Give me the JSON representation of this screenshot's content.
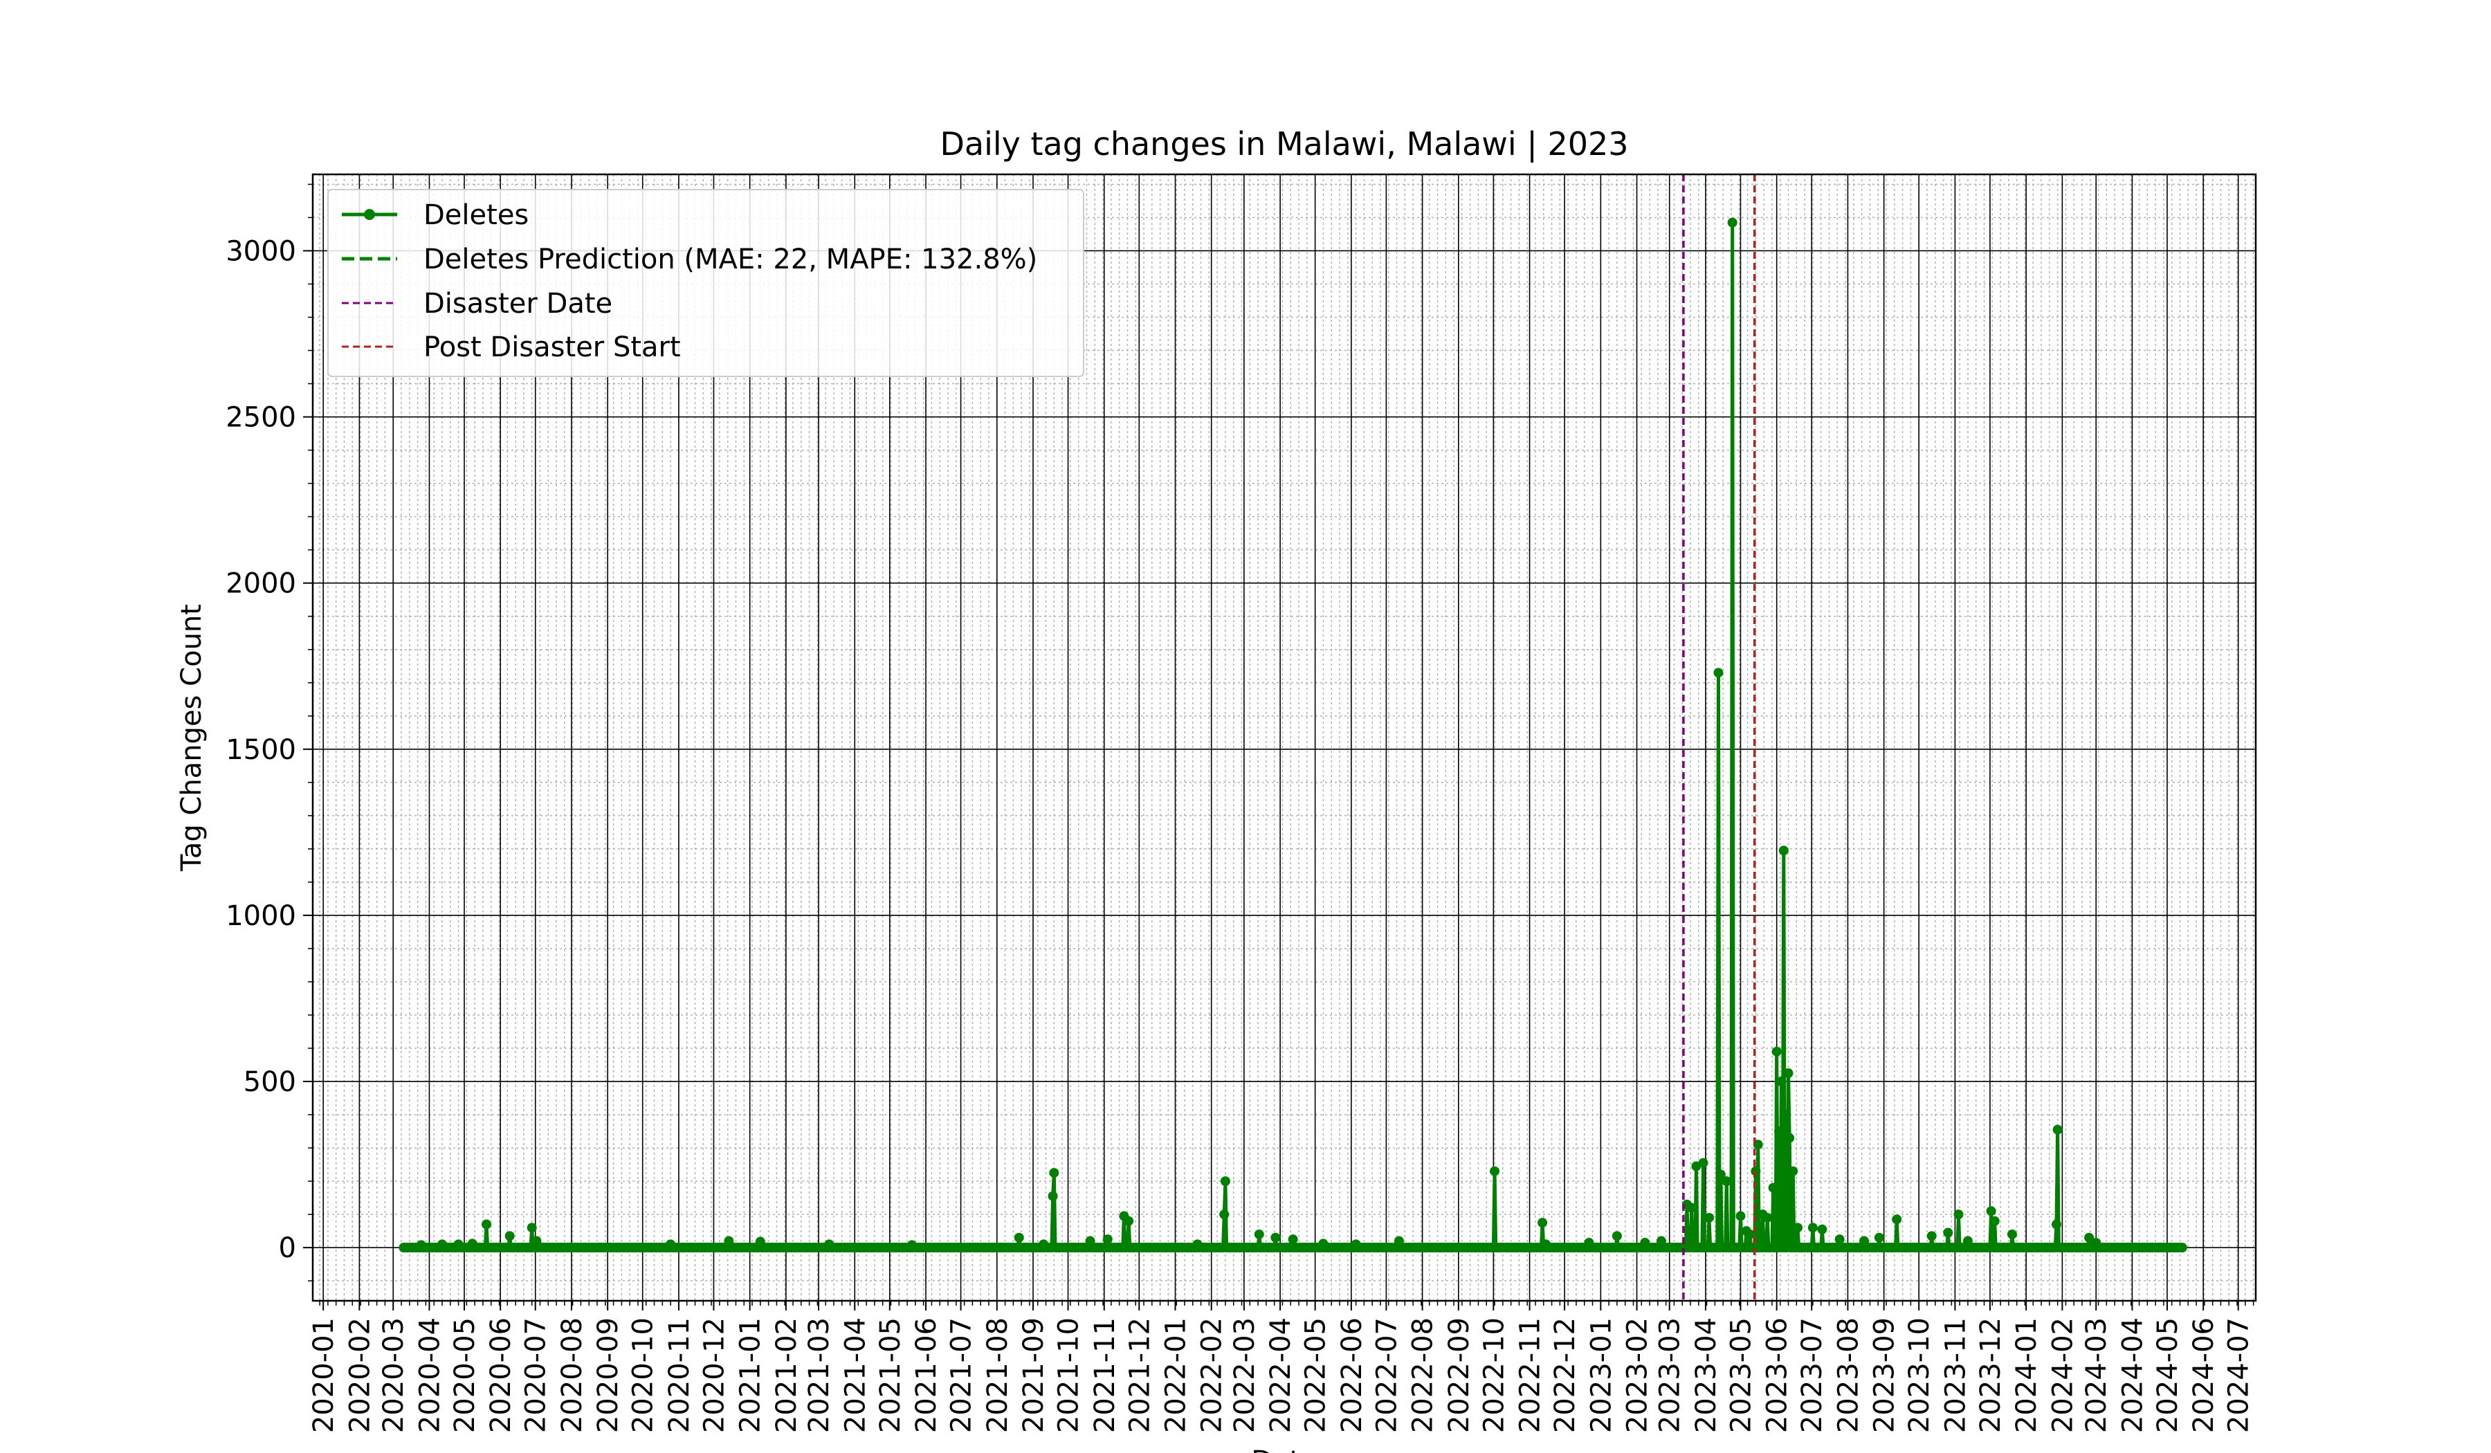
{
  "chart_data": {
    "type": "line",
    "title": "Daily tag changes in Malawi, Malawi | 2023",
    "xlabel": "Date",
    "ylabel": "Tag Changes Count",
    "xlim": [
      "2019-12-23",
      "2024-07-16"
    ],
    "ylim": [
      -160,
      3230
    ],
    "grid": true,
    "legend_position": "top-left",
    "x_ticks": [
      "2020-01",
      "2020-02",
      "2020-03",
      "2020-04",
      "2020-05",
      "2020-06",
      "2020-07",
      "2020-08",
      "2020-09",
      "2020-10",
      "2020-11",
      "2020-12",
      "2021-01",
      "2021-02",
      "2021-03",
      "2021-04",
      "2021-05",
      "2021-06",
      "2021-07",
      "2021-08",
      "2021-09",
      "2021-10",
      "2021-11",
      "2021-12",
      "2022-01",
      "2022-02",
      "2022-03",
      "2022-04",
      "2022-05",
      "2022-06",
      "2022-07",
      "2022-08",
      "2022-09",
      "2022-10",
      "2022-11",
      "2022-12",
      "2023-01",
      "2023-02",
      "2023-03",
      "2023-04",
      "2023-05",
      "2023-06",
      "2023-07",
      "2023-08",
      "2023-09",
      "2023-10",
      "2023-11",
      "2023-12",
      "2024-01",
      "2024-02",
      "2024-03",
      "2024-04",
      "2024-05",
      "2024-06",
      "2024-07"
    ],
    "y_ticks": [
      0,
      500,
      1000,
      1500,
      2000,
      2500,
      3000
    ],
    "legend": [
      {
        "label": "Deletes",
        "style": "line-marker",
        "color": "#008000"
      },
      {
        "label": "Deletes Prediction (MAE: 22, MAPE: 132.8%)",
        "style": "dashed",
        "color": "#008000"
      },
      {
        "label": "Disaster Date",
        "style": "dashed",
        "color": "#800080"
      },
      {
        "label": "Post Disaster Start",
        "style": "dashed",
        "color": "#b22222"
      }
    ],
    "vlines": [
      {
        "name": "Disaster Date",
        "x": "2023-03-13",
        "color": "#800080"
      },
      {
        "name": "Post Disaster Start",
        "x": "2023-05-13",
        "color": "#b22222"
      }
    ],
    "series": [
      {
        "name": "Deletes",
        "color": "#008000",
        "start": "2020-03-10",
        "end": "2024-05-14",
        "baseline": 0,
        "spikes": [
          [
            "2020-03-25",
            8
          ],
          [
            "2020-04-12",
            10
          ],
          [
            "2020-04-26",
            10
          ],
          [
            "2020-05-08",
            12
          ],
          [
            "2020-05-20",
            70
          ],
          [
            "2020-06-09",
            35
          ],
          [
            "2020-06-28",
            60
          ],
          [
            "2020-07-02",
            20
          ],
          [
            "2020-10-25",
            10
          ],
          [
            "2020-12-14",
            20
          ],
          [
            "2021-01-10",
            18
          ],
          [
            "2021-03-10",
            10
          ],
          [
            "2021-05-20",
            8
          ],
          [
            "2021-08-20",
            30
          ],
          [
            "2021-09-10",
            10
          ],
          [
            "2021-09-18",
            155
          ],
          [
            "2021-09-19",
            225
          ],
          [
            "2021-10-20",
            20
          ],
          [
            "2021-11-04",
            25
          ],
          [
            "2021-11-18",
            95
          ],
          [
            "2021-11-22",
            80
          ],
          [
            "2022-01-20",
            10
          ],
          [
            "2022-02-12",
            100
          ],
          [
            "2022-02-13",
            200
          ],
          [
            "2022-03-14",
            40
          ],
          [
            "2022-03-28",
            30
          ],
          [
            "2022-04-12",
            25
          ],
          [
            "2022-05-08",
            12
          ],
          [
            "2022-06-05",
            10
          ],
          [
            "2022-07-12",
            20
          ],
          [
            "2022-10-02",
            230
          ],
          [
            "2022-11-12",
            75
          ],
          [
            "2022-11-15",
            10
          ],
          [
            "2022-12-22",
            15
          ],
          [
            "2023-01-15",
            35
          ],
          [
            "2023-02-08",
            15
          ],
          [
            "2023-02-22",
            20
          ],
          [
            "2023-03-16",
            130
          ],
          [
            "2023-03-20",
            120
          ],
          [
            "2023-03-24",
            245
          ],
          [
            "2023-03-30",
            255
          ],
          [
            "2023-04-04",
            90
          ],
          [
            "2023-04-12",
            1730
          ],
          [
            "2023-04-14",
            220
          ],
          [
            "2023-04-19",
            200
          ],
          [
            "2023-04-24",
            3085
          ],
          [
            "2023-05-01",
            95
          ],
          [
            "2023-05-06",
            50
          ],
          [
            "2023-05-09",
            40
          ],
          [
            "2023-05-14",
            230
          ],
          [
            "2023-05-16",
            310
          ],
          [
            "2023-05-20",
            100
          ],
          [
            "2023-05-24",
            90
          ],
          [
            "2023-05-29",
            180
          ],
          [
            "2023-06-01",
            590
          ],
          [
            "2023-06-03",
            350
          ],
          [
            "2023-06-05",
            500
          ],
          [
            "2023-06-07",
            1195
          ],
          [
            "2023-06-09",
            400
          ],
          [
            "2023-06-11",
            525
          ],
          [
            "2023-06-12",
            330
          ],
          [
            "2023-06-15",
            230
          ],
          [
            "2023-06-19",
            60
          ],
          [
            "2023-07-02",
            60
          ],
          [
            "2023-07-10",
            55
          ],
          [
            "2023-07-25",
            25
          ],
          [
            "2023-08-15",
            20
          ],
          [
            "2023-08-28",
            30
          ],
          [
            "2023-09-12",
            85
          ],
          [
            "2023-10-12",
            35
          ],
          [
            "2023-10-26",
            45
          ],
          [
            "2023-11-04",
            100
          ],
          [
            "2023-11-12",
            20
          ],
          [
            "2023-12-02",
            110
          ],
          [
            "2023-12-05",
            80
          ],
          [
            "2023-12-20",
            40
          ],
          [
            "2024-01-27",
            70
          ],
          [
            "2024-01-28",
            355
          ],
          [
            "2024-02-24",
            30
          ],
          [
            "2024-03-01",
            15
          ]
        ]
      }
    ]
  }
}
